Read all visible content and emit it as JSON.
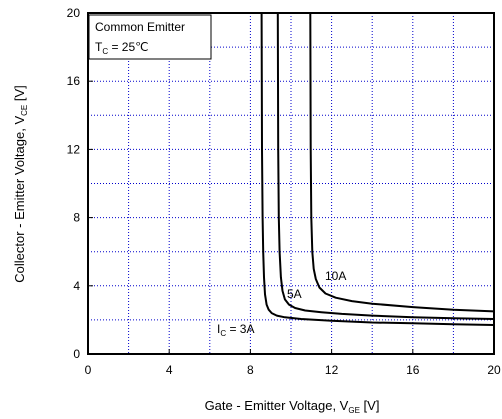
{
  "chart_data": {
    "type": "line",
    "xlabel": {
      "main": "Gate - Emitter Voltage, V",
      "sub": "GE",
      "unit": " [V]"
    },
    "ylabel": {
      "main": "Collector - Emitter Voltage, V",
      "sub": "CE",
      "unit": " [V]"
    },
    "xlim": [
      0,
      20
    ],
    "ylim": [
      0,
      20
    ],
    "x_ticks": [
      0,
      4,
      8,
      12,
      16,
      20
    ],
    "y_ticks": [
      0,
      4,
      8,
      12,
      16,
      20
    ],
    "grid": true,
    "grid_style": "dotted blue, every 2 V",
    "annotation": {
      "line1": "Common Emitter",
      "line2_main": "T",
      "line2_sub": "C",
      "line2_rest": " = 25℃"
    },
    "series": [
      {
        "label_main": "I",
        "label_sub": "C",
        "label_rest": " = 3A",
        "x": [
          8.55,
          8.57,
          8.6,
          8.63,
          8.67,
          8.72,
          8.8,
          8.9,
          9.05,
          9.3,
          9.7,
          10.5,
          12,
          14,
          16,
          18,
          20
        ],
        "y": [
          20,
          12,
          8,
          6,
          4.5,
          3.5,
          2.9,
          2.6,
          2.4,
          2.25,
          2.15,
          2.05,
          1.95,
          1.85,
          1.8,
          1.75,
          1.7
        ]
      },
      {
        "label": "5A",
        "x": [
          9.35,
          9.37,
          9.4,
          9.44,
          9.5,
          9.58,
          9.7,
          9.9,
          10.2,
          10.7,
          11.5,
          12.5,
          14,
          16,
          18,
          20
        ],
        "y": [
          20,
          12,
          8,
          6,
          4.5,
          3.7,
          3.2,
          2.9,
          2.7,
          2.55,
          2.45,
          2.35,
          2.25,
          2.15,
          2.1,
          2.05
        ]
      },
      {
        "label": "10A",
        "x": [
          10.95,
          10.97,
          11.0,
          11.05,
          11.12,
          11.22,
          11.4,
          11.7,
          12.2,
          13,
          14,
          16,
          18,
          20
        ],
        "y": [
          20,
          12,
          8,
          6,
          5,
          4.4,
          3.9,
          3.55,
          3.3,
          3.1,
          2.95,
          2.75,
          2.6,
          2.5
        ]
      }
    ]
  }
}
